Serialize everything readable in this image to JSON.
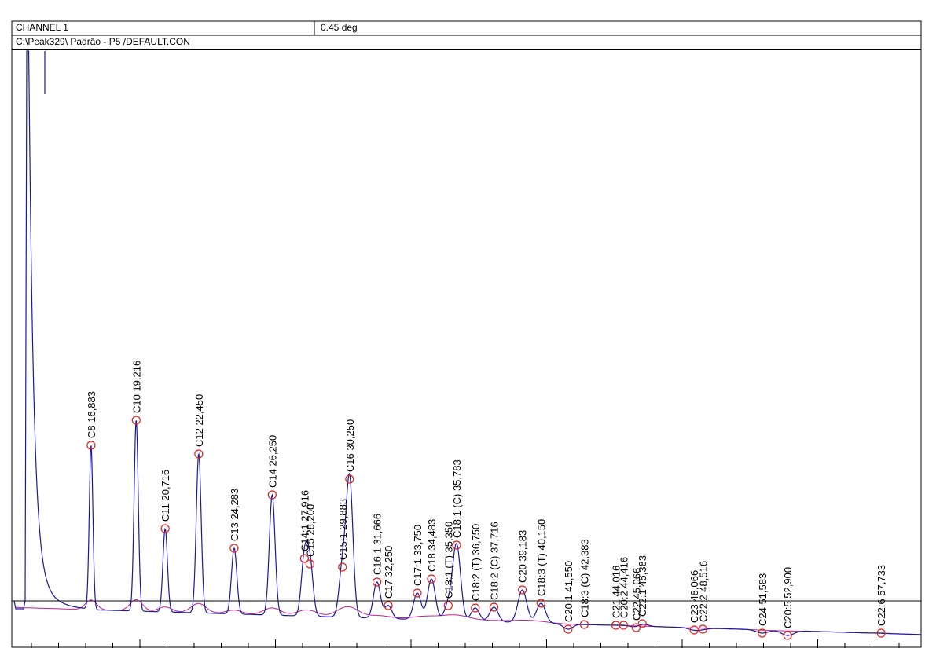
{
  "chart_data": {
    "type": "chromatogram",
    "channel": "CHANNEL 1",
    "scale": "0.45 deg",
    "file": "C:\\Peak329\\  Padrão - P5  /DEFAULT.CON",
    "xlim": [
      12.5,
      59.8
    ],
    "ylim": [
      0,
      755
    ],
    "color": "#1a1aa0",
    "baseline_color": "#c0208a",
    "marker_color": "#e02020",
    "labels": [
      "C8 16,883",
      "C10 19,216",
      "C11 20,716",
      "C12 22,450",
      "C13 24,283",
      "C14 26,250",
      "C14:1 27,916",
      "C15 28,200",
      "C15:1 29,883",
      "C16 30,250",
      "C16:1 31,666",
      "C17 32,250",
      "C17:1 33,750",
      "C18 34,483",
      "C18:1 (T) 35,350",
      "C18:1 (C) 35,783",
      "C18:2 (T) 36,750",
      "C18:2 (C) 37,716",
      "C20 39,183",
      "C18:3 (T) 40,150",
      "C20:1 41,550",
      "C18:3 (C) 42,383",
      "C21 44,016",
      "C20:2 44,416",
      "C22 45,066",
      "C22:1 45,383",
      "C23 48,066",
      "C22:2 48,516",
      "C24 51,583",
      "C20:5 52,900",
      "C22:6 57,733"
    ],
    "x": [
      16.883,
      19.216,
      20.716,
      22.45,
      24.283,
      26.25,
      27.916,
      28.2,
      29.883,
      30.25,
      31.666,
      32.25,
      33.75,
      34.483,
      35.35,
      35.783,
      36.75,
      37.716,
      39.183,
      40.15,
      41.55,
      42.383,
      44.016,
      44.416,
      45.066,
      45.383,
      48.066,
      48.516,
      51.583,
      52.9,
      57.733
    ],
    "values": [
      253,
      285,
      147,
      242,
      122,
      190,
      109,
      102,
      98,
      210,
      79,
      49,
      65,
      83,
      49,
      126,
      46,
      47,
      69,
      52,
      19,
      25,
      24,
      24,
      21,
      26,
      18,
      19,
      14,
      11,
      14
    ]
  }
}
